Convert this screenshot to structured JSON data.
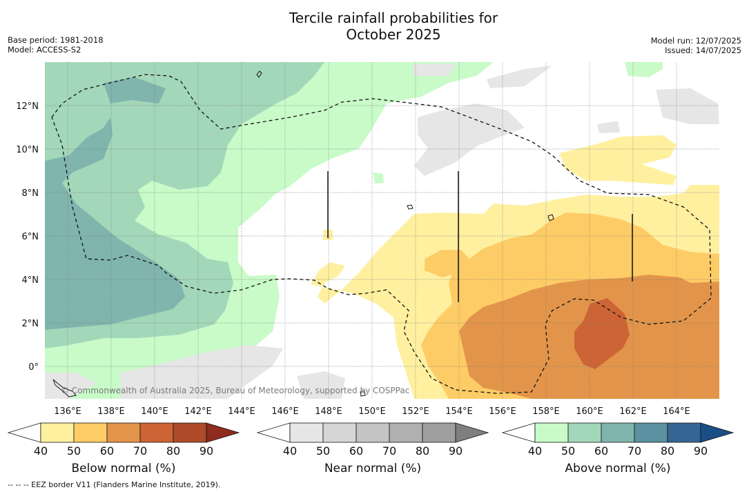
{
  "title_line1": "Tercile rainfall probabilities for",
  "title_line2": "October 2025",
  "meta": {
    "base_period": "Base period: 1981-2018",
    "model": "Model: ACCESS-S2",
    "model_run": "Model run: 12/07/2025",
    "issued": "Issued: 14/07/2025"
  },
  "map": {
    "lat_labels": [
      "12°N",
      "10°N",
      "8°N",
      "6°N",
      "4°N",
      "2°N",
      "0°"
    ],
    "lon_labels": [
      "136°E",
      "138°E",
      "140°E",
      "142°E",
      "144°E",
      "146°E",
      "148°E",
      "150°E",
      "152°E",
      "154°E",
      "156°E",
      "158°E",
      "160°E",
      "162°E",
      "164°E"
    ],
    "copyright": "© Commonwealth of Australia 2025, Bureau of Meteorology, supported by COSPPac"
  },
  "colors": {
    "below": [
      "#fff0a0",
      "#fecc66",
      "#e2954a",
      "#cd6436",
      "#ae4b29",
      "#8d2c1f"
    ],
    "near": [
      "#e6e6e6",
      "#d6d6d6",
      "#c4c4c4",
      "#b0b0b0",
      "#9f9f9f",
      "#7f7f7f"
    ],
    "above": [
      "#c8fbc8",
      "#a3d7b9",
      "#7fb5ad",
      "#5b91a0",
      "#356593",
      "#1a4e86"
    ]
  },
  "colorbars": [
    {
      "title": "Below normal (%)",
      "ticks": [
        "40",
        "50",
        "60",
        "70",
        "80",
        "90"
      ]
    },
    {
      "title": "Near normal (%)",
      "ticks": [
        "40",
        "50",
        "60",
        "70",
        "80",
        "90"
      ]
    },
    {
      "title": "Above normal (%)",
      "ticks": [
        "40",
        "50",
        "60",
        "70",
        "80",
        "90"
      ]
    }
  ],
  "footnote": "--  --  -- EEZ border V11 (Flanders Marine Institute, 2019)."
}
